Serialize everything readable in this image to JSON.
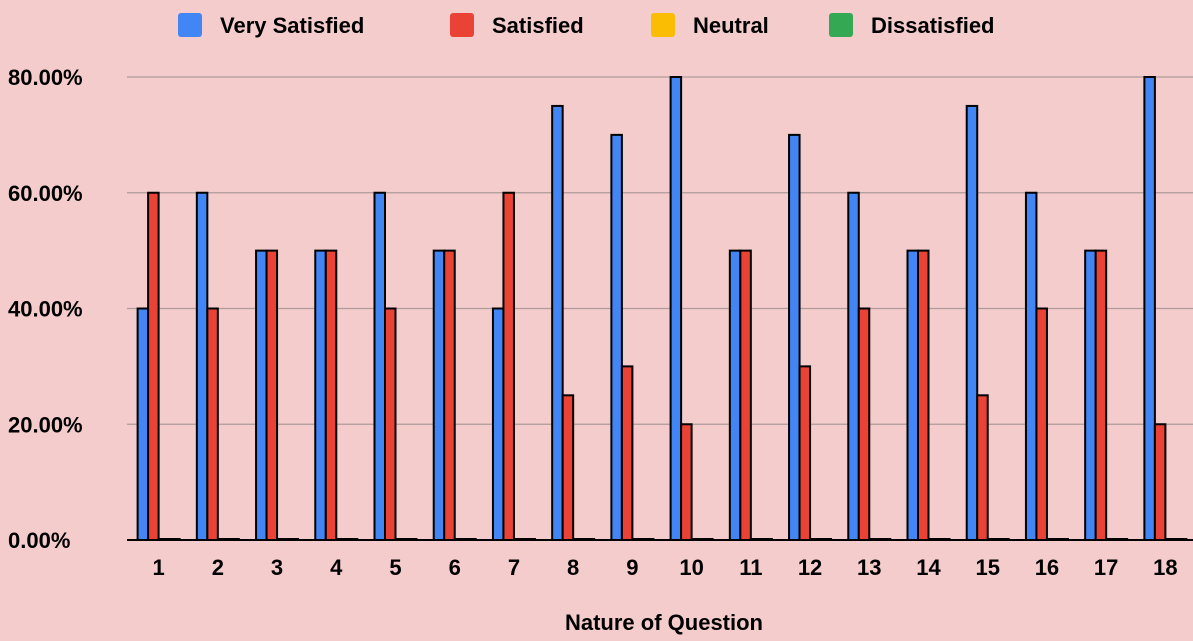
{
  "chart_data": {
    "type": "bar",
    "title": "",
    "xlabel": "Nature of Question",
    "ylabel": "",
    "categories": [
      "1",
      "2",
      "3",
      "4",
      "5",
      "6",
      "7",
      "8",
      "9",
      "10",
      "11",
      "12",
      "13",
      "14",
      "15",
      "16",
      "17",
      "18"
    ],
    "series": [
      {
        "name": "Very Satisfied",
        "color": "#4285f4",
        "values": [
          40,
          60,
          50,
          50,
          60,
          50,
          40,
          75,
          70,
          80,
          50,
          70,
          60,
          50,
          75,
          60,
          50,
          80
        ]
      },
      {
        "name": "Satisfied",
        "color": "#ea4335",
        "values": [
          60,
          40,
          50,
          50,
          40,
          50,
          60,
          25,
          30,
          20,
          50,
          30,
          40,
          50,
          25,
          40,
          50,
          20
        ]
      },
      {
        "name": "Neutral",
        "color": "#fbbc04",
        "values": [
          0,
          0,
          0,
          0,
          0,
          0,
          0,
          0,
          0,
          0,
          0,
          0,
          0,
          0,
          0,
          0,
          0,
          0
        ]
      },
      {
        "name": "Dissatisfied",
        "color": "#34a853",
        "values": [
          0,
          0,
          0,
          0,
          0,
          0,
          0,
          0,
          0,
          0,
          0,
          0,
          0,
          0,
          0,
          0,
          0,
          0
        ]
      }
    ],
    "ylim": [
      0,
      80
    ],
    "yticks": [
      "0.00%",
      "20.00%",
      "40.00%",
      "60.00%",
      "80.00%"
    ],
    "ytick_values": [
      0,
      20,
      40,
      60,
      80
    ],
    "grid": true,
    "legend_position": "top"
  }
}
